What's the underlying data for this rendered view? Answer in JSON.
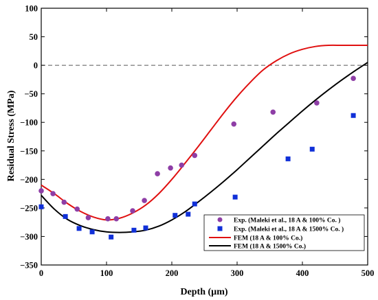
{
  "chart_data": {
    "type": "scatter",
    "xlabel": "Depth (µm)",
    "ylabel": "Residual Stress (MPa)",
    "xlim": [
      0,
      500
    ],
    "ylim": [
      -350,
      100
    ],
    "xticks": [
      0,
      100,
      200,
      300,
      400,
      500
    ],
    "yticks": [
      -350,
      -300,
      -250,
      -200,
      -150,
      -100,
      -50,
      0,
      50,
      100
    ],
    "grid": false,
    "zero_reference_line": true,
    "legend_position": "bottom-right",
    "series": [
      {
        "name": "Exp. (Maleki et al., 18 A & 100% Co. )",
        "kind": "scatter",
        "marker": "circle",
        "color": "#8e3ea6",
        "x": [
          0,
          18,
          35,
          55,
          72,
          102,
          115,
          140,
          158,
          178,
          198,
          215,
          235,
          295,
          355,
          422,
          478
        ],
        "y": [
          -220,
          -225,
          -240,
          -252,
          -267,
          -269,
          -269,
          -255,
          -237,
          -190,
          -180,
          -175,
          -158,
          -103,
          -82,
          -66,
          -23
        ]
      },
      {
        "name": "Exp. (Maleki et al., 18 A & 1500% Co. )",
        "kind": "scatter",
        "marker": "square",
        "color": "#1030d8",
        "x": [
          0,
          37,
          58,
          78,
          107,
          142,
          160,
          205,
          225,
          235,
          297,
          378,
          415,
          478
        ],
        "y": [
          -248,
          -265,
          -286,
          -292,
          -301,
          -289,
          -285,
          -263,
          -261,
          -243,
          -231,
          -164,
          -147,
          -88
        ]
      },
      {
        "name": "FEM (18 A & 100% Co.)",
        "kind": "line",
        "color": "#e01010",
        "x": [
          0,
          20,
          40,
          60,
          80,
          100,
          120,
          140,
          160,
          180,
          200,
          220,
          240,
          260,
          280,
          300,
          320,
          340,
          360,
          380,
          400,
          420,
          440,
          460,
          480,
          500
        ],
        "y": [
          -210,
          -225,
          -242,
          -256,
          -266,
          -271,
          -268,
          -259,
          -245,
          -225,
          -200,
          -172,
          -143,
          -113,
          -83,
          -55,
          -30,
          -8,
          8,
          20,
          28,
          33,
          35,
          35,
          35,
          35
        ]
      },
      {
        "name": "FEM (18 A & 1500% Co.)",
        "kind": "line",
        "color": "#000000",
        "x": [
          0,
          20,
          40,
          60,
          80,
          100,
          120,
          140,
          160,
          180,
          200,
          220,
          240,
          260,
          280,
          300,
          320,
          340,
          360,
          380,
          400,
          420,
          440,
          460,
          480,
          500
        ],
        "y": [
          -228,
          -252,
          -270,
          -281,
          -288,
          -292,
          -293,
          -292,
          -289,
          -282,
          -271,
          -257,
          -240,
          -222,
          -203,
          -183,
          -162,
          -141,
          -120,
          -100,
          -80,
          -61,
          -43,
          -26,
          -10,
          5
        ]
      }
    ]
  }
}
